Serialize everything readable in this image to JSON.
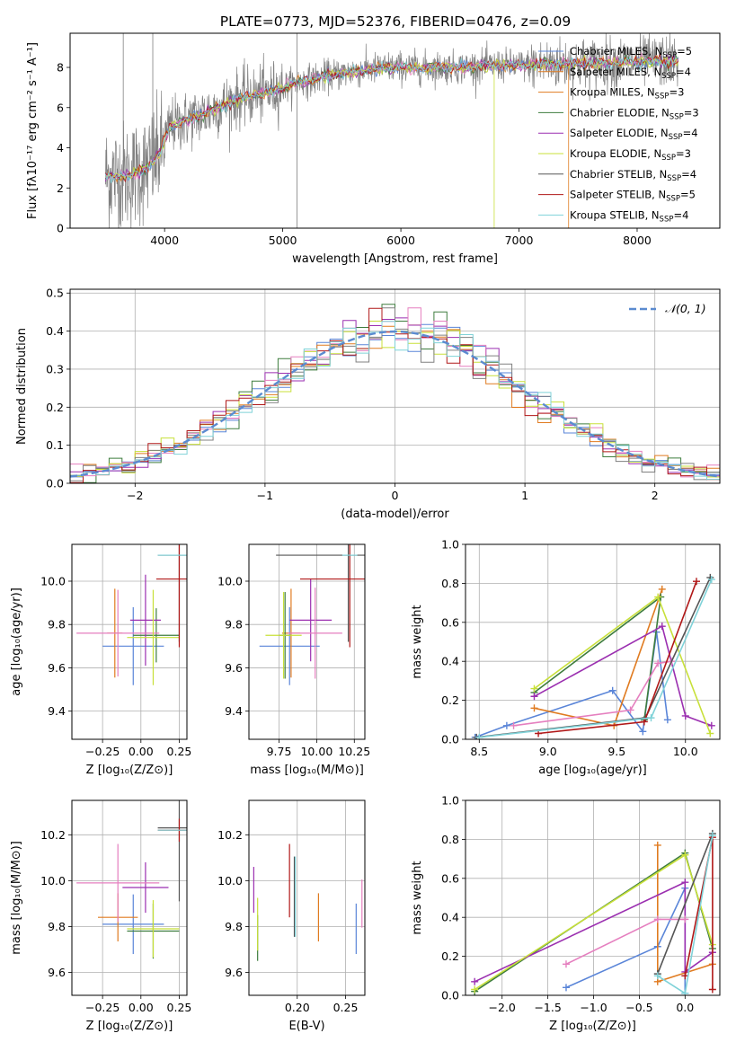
{
  "colors": {
    "blue": "#5a85d8",
    "orange": "#e07b20",
    "green": "#3e7d3e",
    "purple": "#9b2fb0",
    "pink": "#e57fbf",
    "yellowgreen": "#c8e03a",
    "gray": "#808080",
    "red": "#b01818",
    "cyan": "#7fd2d8",
    "darkgray": "#555555"
  },
  "chart_data": [
    {
      "id": "spectrum",
      "type": "line",
      "title": "PLATE=0773, MJD=52376, FIBERID=0476, z=0.09",
      "xlabel": "wavelength [Angstrom, rest frame]",
      "ylabel": "Flux [fλ10⁻¹⁷ erg cm⁻² s⁻¹ A⁻¹]",
      "xlim": [
        3200,
        8700
      ],
      "ylim": [
        0,
        9.7
      ],
      "xticks": [
        "4000",
        "5000",
        "6000",
        "7000",
        "8000"
      ],
      "yticks": [
        "0",
        "2",
        "4",
        "6",
        "8"
      ],
      "xtick_values": [
        4000,
        5000,
        6000,
        7000,
        8000
      ],
      "ytick_values": [
        0,
        2,
        4,
        6,
        8
      ],
      "continuum": [
        [
          3500,
          2.6
        ],
        [
          3700,
          2.6
        ],
        [
          3850,
          3.0
        ],
        [
          3950,
          3.6
        ],
        [
          4050,
          5.1
        ],
        [
          4300,
          5.6
        ],
        [
          4600,
          6.4
        ],
        [
          4900,
          6.8
        ],
        [
          5100,
          7.2
        ],
        [
          5400,
          7.6
        ],
        [
          5600,
          7.8
        ],
        [
          5900,
          8.0
        ],
        [
          6200,
          8.0
        ],
        [
          6500,
          8.0
        ],
        [
          6800,
          8.1
        ],
        [
          7100,
          8.1
        ],
        [
          7400,
          8.2
        ],
        [
          7700,
          8.2
        ],
        [
          8000,
          8.3
        ],
        [
          8300,
          8.3
        ]
      ],
      "legend": [
        {
          "label": "Chabrier MILES, N",
          "sub": "SSP",
          "suffix": "=5",
          "color": "#5a85d8"
        },
        {
          "label": "Salpeter MILES, N",
          "sub": "SSP",
          "suffix": "=4",
          "color": "#e07b20"
        },
        {
          "label": "Kroupa MILES, N",
          "sub": "SSP",
          "suffix": "=3",
          "color": "#e07b20"
        },
        {
          "label": "Chabrier ELODIE, N",
          "sub": "SSP",
          "suffix": "=3",
          "color": "#3e7d3e"
        },
        {
          "label": "Salpeter ELODIE, N",
          "sub": "SSP",
          "suffix": "=4",
          "color": "#9b2fb0"
        },
        {
          "label": "Kroupa ELODIE, N",
          "sub": "SSP",
          "suffix": "=3",
          "color": "#c8e03a"
        },
        {
          "label": "Chabrier STELIB, N",
          "sub": "SSP",
          "suffix": "=4",
          "color": "#555555"
        },
        {
          "label": "Salpeter STELIB, N",
          "sub": "SSP",
          "suffix": "=5",
          "color": "#b01818"
        },
        {
          "label": "Kroupa STELIB, N",
          "sub": "SSP",
          "suffix": "=4",
          "color": "#7fd2d8"
        }
      ]
    },
    {
      "id": "residuals",
      "type": "histogram",
      "xlabel": "(data-model)/error",
      "ylabel": "Normed distribution",
      "xlim": [
        -2.5,
        2.5
      ],
      "ylim": [
        0,
        0.51
      ],
      "xticks": [
        "−2",
        "−1",
        "0",
        "1",
        "2"
      ],
      "yticks": [
        "0.0",
        "0.1",
        "0.2",
        "0.3",
        "0.4",
        "0.5"
      ],
      "xtick_values": [
        -2,
        -1,
        0,
        1,
        2
      ],
      "ytick_values": [
        0,
        0.1,
        0.2,
        0.3,
        0.4,
        0.5
      ],
      "grid": true,
      "legend_label": "𝒩(0, 1)",
      "legend_position": "top-right",
      "bin_width": 0.1
    },
    {
      "id": "age_vs_Z",
      "type": "scatter",
      "xlabel": "Z [log₁₀(Z/Z⊙)]",
      "ylabel": "age  [log₁₀(age/yr)]",
      "xlim": [
        -0.45,
        0.3
      ],
      "ylim": [
        9.27,
        10.17
      ],
      "xticks": [
        "−0.25",
        "0.00",
        "0.25"
      ],
      "yticks": [
        "9.4",
        "9.6",
        "9.8",
        "10.0"
      ],
      "xtick_values": [
        -0.25,
        0,
        0.25
      ],
      "ytick_values": [
        9.4,
        9.6,
        9.8,
        10.0
      ],
      "points": [
        {
          "x": -0.05,
          "y": 9.7,
          "xerr": 0.2,
          "yerr": 0.36,
          "color": "#5a85d8"
        },
        {
          "x": -0.17,
          "y": 9.76,
          "xerr": 0.05,
          "yerr": 0.41,
          "color": "#e07b20"
        },
        {
          "x": 0.1,
          "y": 9.75,
          "xerr": 0.15,
          "yerr": 0.25,
          "color": "#3e7d3e"
        },
        {
          "x": 0.03,
          "y": 9.82,
          "xerr": 0.1,
          "yerr": 0.42,
          "color": "#9b2fb0"
        },
        {
          "x": -0.15,
          "y": 9.76,
          "xerr": 0.27,
          "yerr": 0.4,
          "color": "#e57fbf"
        },
        {
          "x": 0.08,
          "y": 9.74,
          "xerr": 0.17,
          "yerr": 0.44,
          "color": "#c8e03a"
        },
        {
          "x": 0.25,
          "y": 10.12,
          "xerr": 0.14,
          "yerr": 0.8,
          "color": "#555555"
        },
        {
          "x": 0.25,
          "y": 10.01,
          "xerr": 0.15,
          "yerr": 0.63,
          "color": "#b01818"
        },
        {
          "x": 0.25,
          "y": 10.12,
          "xerr": 0.14,
          "yerr": 0.0,
          "color": "#7fd2d8"
        }
      ]
    },
    {
      "id": "age_vs_mass",
      "type": "scatter",
      "xlabel": "mass [log₁₀(M/M⊙)]",
      "ylabel": "",
      "xlim": [
        9.55,
        10.32
      ],
      "ylim": [
        9.27,
        10.17
      ],
      "xticks": [
        "9.75",
        "10.00",
        "10.25"
      ],
      "yticks": [
        "9.4",
        "9.6",
        "9.8",
        "10.0"
      ],
      "xtick_values": [
        9.75,
        10.0,
        10.25
      ],
      "ytick_values": [
        9.4,
        9.6,
        9.8,
        10.0
      ],
      "points": [
        {
          "x": 9.82,
          "y": 9.7,
          "xerr": 0.2,
          "yerr": 0.36,
          "color": "#5a85d8"
        },
        {
          "x": 9.83,
          "y": 9.76,
          "xerr": 0.06,
          "yerr": 0.41,
          "color": "#e07b20"
        },
        {
          "x": 9.79,
          "y": 9.75,
          "xerr": 0.04,
          "yerr": 0.4,
          "color": "#3e7d3e"
        },
        {
          "x": 9.96,
          "y": 9.82,
          "xerr": 0.14,
          "yerr": 0.38,
          "color": "#9b2fb0"
        },
        {
          "x": 9.99,
          "y": 9.76,
          "xerr": 0.18,
          "yerr": 0.42,
          "color": "#e57fbf"
        },
        {
          "x": 9.78,
          "y": 9.75,
          "xerr": 0.12,
          "yerr": 0.4,
          "color": "#c8e03a"
        },
        {
          "x": 10.21,
          "y": 10.12,
          "xerr": 0.48,
          "yerr": 0.8,
          "color": "#555555"
        },
        {
          "x": 10.22,
          "y": 10.01,
          "xerr": 0.33,
          "yerr": 0.63,
          "color": "#b01818"
        },
        {
          "x": 10.22,
          "y": 10.12,
          "xerr": 0.05,
          "yerr": 0.0,
          "color": "#7fd2d8"
        }
      ]
    },
    {
      "id": "massweight_vs_age",
      "type": "line",
      "xlabel": "age  [log₁₀(age/yr)]",
      "ylabel": "mass weight",
      "xlim": [
        8.4,
        10.25
      ],
      "ylim": [
        0,
        1.0
      ],
      "xticks": [
        "8.5",
        "9.0",
        "9.5",
        "10.0"
      ],
      "yticks": [
        "0.0",
        "0.2",
        "0.4",
        "0.6",
        "0.8",
        "1.0"
      ],
      "xtick_values": [
        8.5,
        9.0,
        9.5,
        10.0
      ],
      "ytick_values": [
        0,
        0.2,
        0.4,
        0.6,
        0.8,
        1.0
      ],
      "series": [
        {
          "color": "#5a85d8",
          "points": [
            [
              8.47,
              0.01
            ],
            [
              8.7,
              0.07
            ],
            [
              9.47,
              0.25
            ],
            [
              9.69,
              0.04
            ],
            [
              9.79,
              0.55
            ],
            [
              9.87,
              0.1
            ]
          ]
        },
        {
          "color": "#e07b20",
          "points": [
            [
              8.9,
              0.16
            ],
            [
              9.48,
              0.07
            ],
            [
              9.83,
              0.77
            ]
          ]
        },
        {
          "color": "#3e7d3e",
          "points": [
            [
              8.9,
              0.24
            ],
            [
              9.82,
              0.73
            ],
            [
              9.7,
              0.1
            ]
          ]
        },
        {
          "color": "#9b2fb0",
          "points": [
            [
              8.9,
              0.22
            ],
            [
              9.83,
              0.58
            ],
            [
              10.0,
              0.12
            ],
            [
              10.19,
              0.07
            ]
          ]
        },
        {
          "color": "#e57fbf",
          "points": [
            [
              8.75,
              0.07
            ],
            [
              9.6,
              0.15
            ],
            [
              9.8,
              0.39
            ],
            [
              9.9,
              0.4
            ]
          ]
        },
        {
          "color": "#c8e03a",
          "points": [
            [
              8.9,
              0.26
            ],
            [
              9.8,
              0.73
            ],
            [
              10.18,
              0.03
            ]
          ]
        },
        {
          "color": "#555555",
          "points": [
            [
              8.48,
              0.01
            ],
            [
              9.71,
              0.11
            ],
            [
              10.18,
              0.83
            ]
          ]
        },
        {
          "color": "#b01818",
          "points": [
            [
              8.93,
              0.03
            ],
            [
              9.7,
              0.09
            ],
            [
              10.08,
              0.81
            ]
          ]
        },
        {
          "color": "#7fd2d8",
          "points": [
            [
              8.5,
              0.01
            ],
            [
              9.75,
              0.11
            ],
            [
              10.19,
              0.82
            ]
          ]
        }
      ]
    },
    {
      "id": "mass_vs_Z",
      "type": "scatter",
      "xlabel": "Z [log₁₀(Z/Z⊙)]",
      "ylabel": "mass [log₁₀(M/M⊙)]",
      "xlim": [
        -0.45,
        0.3
      ],
      "ylim": [
        9.5,
        10.35
      ],
      "xticks": [
        "−0.25",
        "0.00",
        "0.25"
      ],
      "yticks": [
        "9.6",
        "9.8",
        "10.0",
        "10.2"
      ],
      "xtick_values": [
        -0.25,
        0,
        0.25
      ],
      "ytick_values": [
        9.6,
        9.8,
        10.0,
        10.2
      ],
      "points": [
        {
          "x": -0.05,
          "y": 9.81,
          "xerr": 0.2,
          "yerr": 0.26,
          "color": "#5a85d8"
        },
        {
          "x": -0.15,
          "y": 9.84,
          "xerr": 0.13,
          "yerr": 0.21,
          "color": "#e07b20"
        },
        {
          "x": 0.08,
          "y": 9.78,
          "xerr": 0.17,
          "yerr": 0.24,
          "color": "#3e7d3e"
        },
        {
          "x": 0.03,
          "y": 9.97,
          "xerr": 0.15,
          "yerr": 0.22,
          "color": "#9b2fb0"
        },
        {
          "x": -0.15,
          "y": 9.99,
          "xerr": 0.27,
          "yerr": 0.34,
          "color": "#e57fbf"
        },
        {
          "x": 0.08,
          "y": 9.79,
          "xerr": 0.17,
          "yerr": 0.25,
          "color": "#c8e03a"
        },
        {
          "x": 0.25,
          "y": 10.23,
          "xerr": 0.14,
          "yerr": 0.64,
          "color": "#555555"
        },
        {
          "x": 0.25,
          "y": 10.22,
          "xerr": 0.14,
          "yerr": 0.1,
          "color": "#b01818"
        },
        {
          "x": 0.25,
          "y": 10.22,
          "xerr": 0.14,
          "yerr": 0.0,
          "color": "#7fd2d8"
        }
      ]
    },
    {
      "id": "mass_vs_ebv",
      "type": "scatter",
      "xlabel": "E(B-V)",
      "ylabel": "",
      "xlim": [
        0.15,
        0.27
      ],
      "ylim": [
        9.5,
        10.35
      ],
      "xticks": [
        "0.20",
        "0.25"
      ],
      "yticks": [
        "9.6",
        "9.8",
        "10.0",
        "10.2"
      ],
      "xtick_values": [
        0.2,
        0.25
      ],
      "ytick_values": [
        9.6,
        9.8,
        10.0,
        10.2
      ],
      "points": [
        {
          "x": 0.261,
          "y": 9.79,
          "yerr": 0.22,
          "color": "#5a85d8"
        },
        {
          "x": 0.222,
          "y": 9.84,
          "yerr": 0.21,
          "color": "#e07b20"
        },
        {
          "x": 0.159,
          "y": 9.75,
          "yerr": 0.2,
          "color": "#3e7d3e"
        },
        {
          "x": 0.155,
          "y": 9.96,
          "yerr": 0.2,
          "color": "#9b2fb0"
        },
        {
          "x": 0.267,
          "y": 9.9,
          "yerr": 0.21,
          "color": "#e57fbf"
        },
        {
          "x": 0.159,
          "y": 9.81,
          "yerr": 0.23,
          "color": "#c8e03a"
        },
        {
          "x": 0.197,
          "y": 9.93,
          "yerr": 0.35,
          "color": "#555555"
        },
        {
          "x": 0.192,
          "y": 10.0,
          "yerr": 0.32,
          "color": "#b01818"
        },
        {
          "x": 0.198,
          "y": 9.93,
          "yerr": 0.35,
          "color": "#7fd2d8"
        }
      ]
    },
    {
      "id": "massweight_vs_Z",
      "type": "line",
      "xlabel": "Z [log₁₀(Z/Z⊙)]",
      "ylabel": "mass weight",
      "xlim": [
        -2.4,
        0.38
      ],
      "ylim": [
        0,
        1.0
      ],
      "xticks": [
        "−2.0",
        "−1.5",
        "−1.0",
        "−0.5",
        "0.0"
      ],
      "xtick_values": [
        -2.0,
        -1.5,
        -1.0,
        -0.5,
        0.0
      ],
      "yticks": [
        "0.0",
        "0.2",
        "0.4",
        "0.6",
        "0.8",
        "1.0"
      ],
      "ytick_values": [
        0,
        0.2,
        0.4,
        0.6,
        0.8,
        1.0
      ],
      "series": [
        {
          "color": "#5a85d8",
          "points": [
            [
              -1.3,
              0.04
            ],
            [
              -0.3,
              0.25
            ],
            [
              0.0,
              0.55
            ],
            [
              0.0,
              0.01
            ]
          ]
        },
        {
          "color": "#e07b20",
          "points": [
            [
              -0.3,
              0.77
            ],
            [
              -0.3,
              0.07
            ],
            [
              0.3,
              0.16
            ]
          ]
        },
        {
          "color": "#3e7d3e",
          "points": [
            [
              -2.3,
              0.02
            ],
            [
              0.0,
              0.73
            ],
            [
              0.3,
              0.24
            ]
          ]
        },
        {
          "color": "#9b2fb0",
          "points": [
            [
              -2.3,
              0.07
            ],
            [
              0.0,
              0.58
            ],
            [
              0.0,
              0.12
            ],
            [
              0.3,
              0.22
            ]
          ]
        },
        {
          "color": "#e57fbf",
          "points": [
            [
              -1.3,
              0.16
            ],
            [
              -0.3,
              0.39
            ],
            [
              0.0,
              0.39
            ]
          ]
        },
        {
          "color": "#c8e03a",
          "points": [
            [
              -2.3,
              0.03
            ],
            [
              0.0,
              0.72
            ],
            [
              0.3,
              0.26
            ]
          ]
        },
        {
          "color": "#555555",
          "points": [
            [
              -0.3,
              0.11
            ],
            [
              0.3,
              0.83
            ]
          ]
        },
        {
          "color": "#b01818",
          "points": [
            [
              0.0,
              0.1
            ],
            [
              0.3,
              0.81
            ],
            [
              0.3,
              0.03
            ]
          ]
        },
        {
          "color": "#7fd2d8",
          "points": [
            [
              -0.3,
              0.1
            ],
            [
              0.0,
              0.01
            ],
            [
              0.3,
              0.82
            ]
          ]
        }
      ]
    }
  ]
}
